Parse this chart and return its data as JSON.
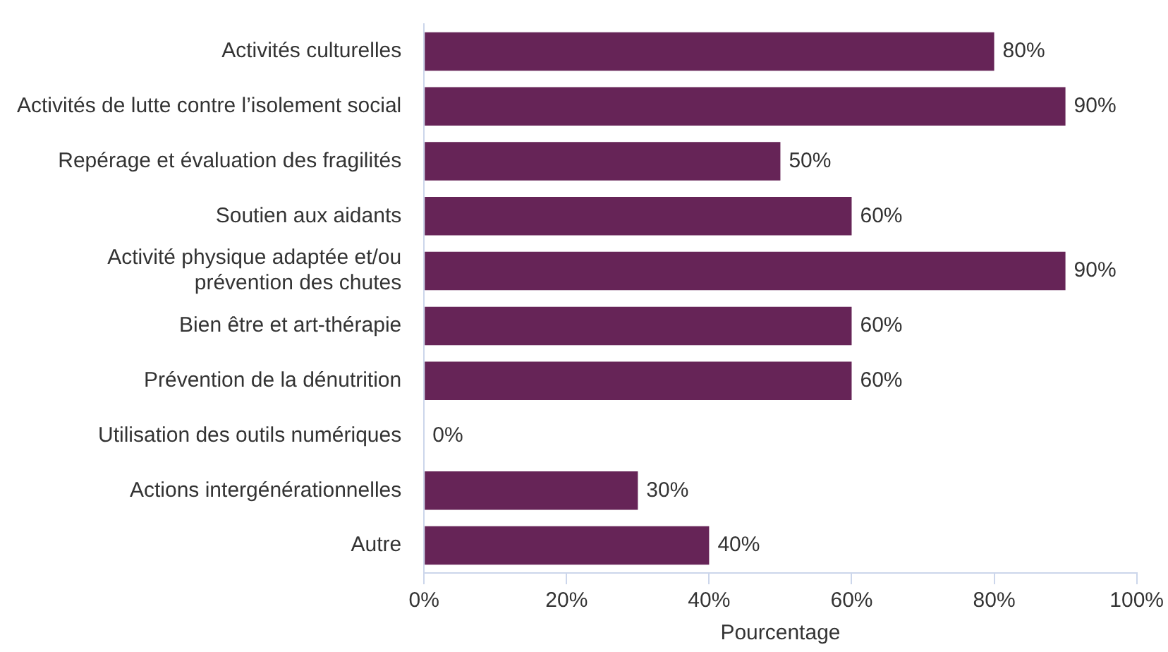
{
  "chart_data": {
    "type": "bar",
    "orientation": "horizontal",
    "xlabel": "Pourcentage",
    "categories": [
      "Activités culturelles",
      "Activités de lutte contre l’isolement social",
      "Repérage et évaluation des fragilités",
      "Soutien aux aidants",
      "Activité physique adaptée et/ou prévention des chutes",
      "Bien être et art-thérapie",
      "Prévention de la dénutrition",
      "Utilisation des outils numériques",
      "Actions intergénérationnelles",
      "Autre"
    ],
    "values": [
      80,
      90,
      50,
      60,
      90,
      60,
      60,
      0,
      30,
      40
    ],
    "value_labels": [
      "80%",
      "90%",
      "50%",
      "60%",
      "90%",
      "60%",
      "60%",
      "0%",
      "30%",
      "40%"
    ],
    "color": "#662457",
    "xlim": [
      0,
      100
    ],
    "xticks": [
      {
        "value": 0,
        "label": "0%"
      },
      {
        "value": 20,
        "label": "20%"
      },
      {
        "value": 40,
        "label": "40%"
      },
      {
        "value": 60,
        "label": "60%"
      },
      {
        "value": 80,
        "label": "80%"
      },
      {
        "value": 100,
        "label": "100%"
      }
    ],
    "grid": false,
    "legend": false
  }
}
